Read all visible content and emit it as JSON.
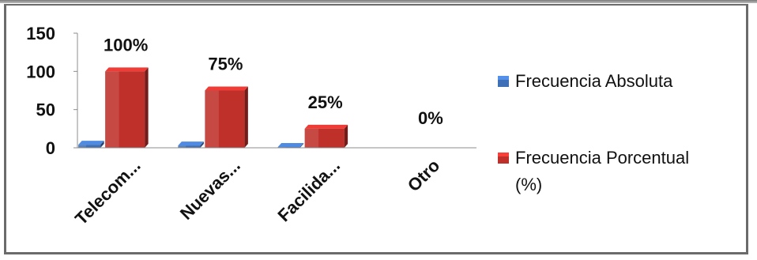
{
  "chart_data": {
    "type": "bar",
    "categories": [
      "Telecom...",
      "Nuevas...",
      "Facilida...",
      "Otro"
    ],
    "ylim": [
      0,
      150
    ],
    "yticks": [
      "0",
      "50",
      "100",
      "150"
    ],
    "series": [
      {
        "name": "Frecuencia Absoluta",
        "values": [
          4,
          3,
          1,
          0
        ],
        "color": "#3f6fb5"
      },
      {
        "name": "Frecuencia Porcentual (%)",
        "values": [
          100,
          75,
          25,
          0
        ],
        "color": "#c0302b"
      }
    ],
    "data_labels": [
      "100%",
      "75%",
      "25%",
      "0%"
    ],
    "legend": {
      "position": "right",
      "items": [
        {
          "label_lines": [
            "Frecuencia Absoluta"
          ]
        },
        {
          "label_lines": [
            "Frecuencia Porcentual",
            "(%)"
          ]
        }
      ]
    },
    "grid": false
  }
}
